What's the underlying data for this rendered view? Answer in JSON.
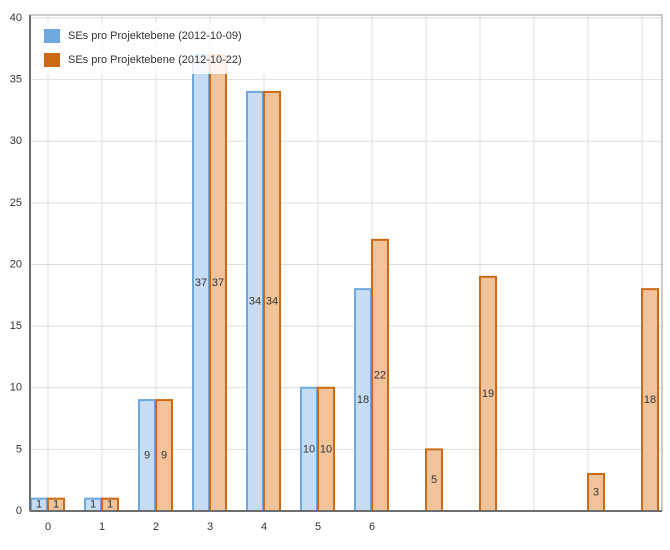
{
  "chart_data": {
    "type": "bar",
    "categories": [
      "0",
      "1",
      "2",
      "3",
      "4",
      "5",
      "6",
      null,
      null,
      null,
      null,
      null
    ],
    "series": [
      {
        "name": "SEs pro Projektebene (2012-10-09)",
        "color": "#6fa8dc",
        "fill": "#c6dcf3",
        "values": [
          1,
          1,
          9,
          37,
          34,
          10,
          18,
          null,
          null,
          null,
          null,
          null
        ]
      },
      {
        "name": "SEs pro Projektebene (2012-10-22)",
        "color": "#cc6a14",
        "fill": "#f0c39a",
        "values": [
          1,
          1,
          9,
          37,
          34,
          10,
          22,
          5,
          19,
          null,
          3,
          18
        ]
      }
    ],
    "ylim": [
      0,
      40
    ],
    "yticks": [
      0,
      5,
      10,
      15,
      20,
      25,
      30,
      35,
      40
    ],
    "grid": true,
    "legend": "top-left"
  }
}
